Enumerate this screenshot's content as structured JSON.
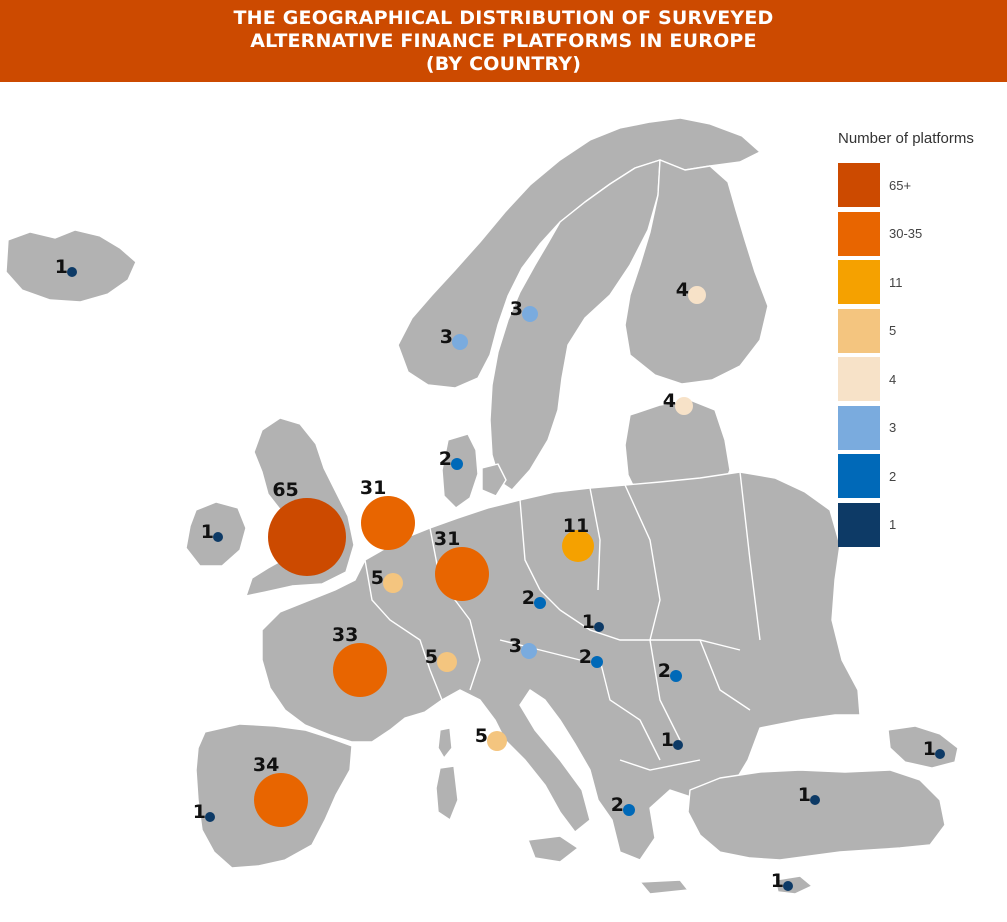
{
  "title": {
    "lines": [
      "THE GEOGRAPHICAL DISTRIBUTION OF SURVEYED",
      "ALTERNATIVE FINANCE PLATFORMS IN EUROPE",
      "(BY COUNTRY)"
    ]
  },
  "legend": {
    "title": "Number of platforms",
    "items": [
      {
        "label": "65+",
        "color": "#cc4a00"
      },
      {
        "label": "30-35",
        "color": "#e86500"
      },
      {
        "label": "11",
        "color": "#f5a100"
      },
      {
        "label": "5",
        "color": "#f4c57f"
      },
      {
        "label": "4",
        "color": "#f7e2c8"
      },
      {
        "label": "3",
        "color": "#7aabde"
      },
      {
        "label": "2",
        "color": "#0069b8"
      },
      {
        "label": "1",
        "color": "#0d3a66"
      }
    ]
  },
  "land_color": "#b2b2b2",
  "markers": [
    {
      "count": 1
    },
    {
      "count": 3
    },
    {
      "count": 3
    },
    {
      "count": 4
    },
    {
      "count": 4
    },
    {
      "count": 2
    },
    {
      "count": 65
    },
    {
      "count": 31
    },
    {
      "count": 1
    },
    {
      "count": 31
    },
    {
      "count": 11
    },
    {
      "count": 5
    },
    {
      "count": 2
    },
    {
      "count": 1
    },
    {
      "count": 33
    },
    {
      "count": 5
    },
    {
      "count": 3
    },
    {
      "count": 2
    },
    {
      "count": 2
    },
    {
      "count": 5
    },
    {
      "count": 1
    },
    {
      "count": 1
    },
    {
      "count": 34
    },
    {
      "count": 1
    },
    {
      "count": 1
    },
    {
      "count": 2
    },
    {
      "count": 1
    }
  ]
}
